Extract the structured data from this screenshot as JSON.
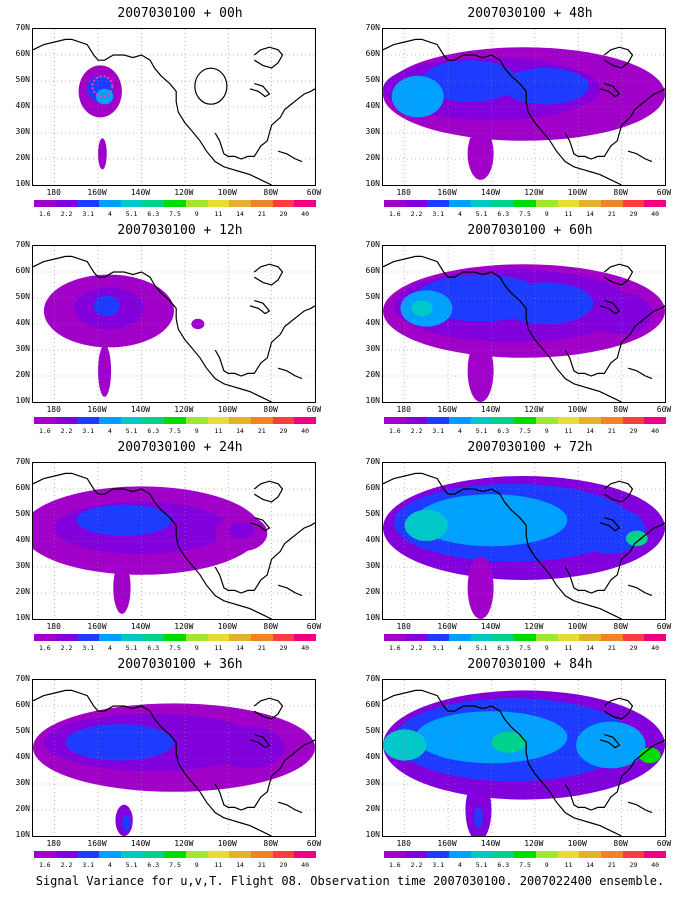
{
  "panels": [
    {
      "title": "2007030100 + 00h",
      "lead_hours": 0
    },
    {
      "title": "2007030100 + 48h",
      "lead_hours": 48
    },
    {
      "title": "2007030100 + 12h",
      "lead_hours": 12
    },
    {
      "title": "2007030100 + 60h",
      "lead_hours": 60
    },
    {
      "title": "2007030100 + 24h",
      "lead_hours": 24
    },
    {
      "title": "2007030100 + 72h",
      "lead_hours": 72
    },
    {
      "title": "2007030100 + 36h",
      "lead_hours": 36
    },
    {
      "title": "2007030100 + 84h",
      "lead_hours": 84
    }
  ],
  "lat_labels": [
    "70N",
    "60N",
    "50N",
    "40N",
    "30N",
    "20N",
    "10N"
  ],
  "lon_labels": [
    "180",
    "160W",
    "140W",
    "120W",
    "100W",
    "80W",
    "60W"
  ],
  "colorbar": {
    "levels": [
      "1.6",
      "2.2",
      "3.1",
      "4",
      "5.1",
      "6.3",
      "7.5",
      "9",
      "11",
      "14",
      "21",
      "29",
      "40"
    ],
    "colors": [
      "#a000c8",
      "#8200dc",
      "#1e3cff",
      "#00a0ff",
      "#00c8c8",
      "#00d28c",
      "#00dc00",
      "#a0e632",
      "#e6dc32",
      "#e6af2d",
      "#f08228",
      "#fa3c3c",
      "#f00082"
    ]
  },
  "caption": "Signal Variance for u,v,T. Flight 08. Observation time 2007030100. 2007022400 ensemble."
}
